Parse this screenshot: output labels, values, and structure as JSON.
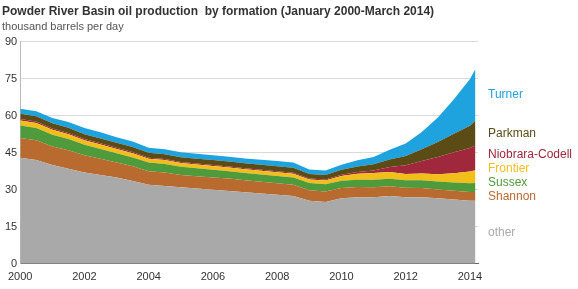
{
  "chart_data": {
    "type": "area",
    "stacked": true,
    "title": "Powder River Basin oil production  by formation (January 2000-March 2014)",
    "subtitle": "thousand barrels per day",
    "x": [
      2000,
      2000.5,
      2001,
      2001.5,
      2002,
      2002.5,
      2003,
      2003.5,
      2004,
      2004.5,
      2005,
      2005.5,
      2006,
      2006.5,
      2007,
      2007.5,
      2008,
      2008.5,
      2009,
      2009.5,
      2010,
      2010.5,
      2011,
      2011.5,
      2012,
      2012.5,
      2013,
      2013.5,
      2014,
      2014.17
    ],
    "xlim": [
      2000,
      2014.25
    ],
    "xticks": [
      2000,
      2002,
      2004,
      2006,
      2008,
      2010,
      2012,
      2014
    ],
    "ylim": [
      0,
      90
    ],
    "yticks": [
      0,
      15,
      30,
      45,
      60,
      75,
      90
    ],
    "grid": true,
    "series": [
      {
        "name": "other",
        "color": "#a9a9a9",
        "values": [
          43,
          42,
          40,
          38.5,
          37,
          36,
          35,
          33.5,
          32,
          31.5,
          31,
          30.5,
          30,
          29.5,
          29,
          28.5,
          28,
          27.5,
          25.5,
          25,
          26.5,
          27,
          27,
          27.5,
          27,
          27,
          26.5,
          26,
          25.5,
          25.5
        ]
      },
      {
        "name": "Shannon",
        "color": "#b96a2e",
        "values": [
          8,
          8,
          7.5,
          7.5,
          7,
          6.5,
          6,
          6,
          5.5,
          5.5,
          5,
          5,
          5,
          5,
          4.8,
          4.7,
          4.6,
          4.5,
          4.3,
          4.3,
          4.2,
          4.1,
          4,
          3.9,
          3.8,
          3.7,
          3.6,
          3.6,
          3.6,
          3.6
        ]
      },
      {
        "name": "Sussex",
        "color": "#4f9a3a",
        "values": [
          5,
          5,
          4.8,
          4.5,
          4.2,
          4,
          3.8,
          3.6,
          3.5,
          3.4,
          3.3,
          3.2,
          3.1,
          3,
          3,
          3,
          3,
          3,
          2.9,
          2.9,
          2.9,
          2.9,
          3,
          3,
          3,
          3.1,
          3.2,
          3.3,
          3.5,
          3.6
        ]
      },
      {
        "name": "Frontier",
        "color": "#f2be1a",
        "values": [
          2,
          2,
          2,
          2,
          1.8,
          1.8,
          1.7,
          1.7,
          1.6,
          1.6,
          1.5,
          1.5,
          1.5,
          1.5,
          1.5,
          1.5,
          1.5,
          1.5,
          1.4,
          1.5,
          2,
          2.5,
          2.8,
          2.8,
          2.6,
          2.8,
          3,
          3.8,
          4.8,
          5.2
        ]
      },
      {
        "name": "Niobrara-Codell",
        "color": "#a0283c",
        "values": [
          0.6,
          0.6,
          0.5,
          0.5,
          0.5,
          0.5,
          0.5,
          0.5,
          0.4,
          0.4,
          0.4,
          0.4,
          0.4,
          0.4,
          0.4,
          0.4,
          0.4,
          0.4,
          0.4,
          0.4,
          0.5,
          0.7,
          1,
          2,
          3.5,
          5,
          7,
          8.5,
          9.5,
          10
        ]
      },
      {
        "name": "Parkman",
        "color": "#5b4b14",
        "values": [
          2.2,
          2.2,
          2.1,
          2.1,
          2,
          2,
          2,
          2,
          2,
          2,
          2,
          2,
          2,
          2,
          2,
          2,
          2,
          2,
          1.9,
          1.9,
          2,
          2.2,
          2.5,
          3,
          3.8,
          4.8,
          6,
          7.5,
          9,
          10
        ]
      },
      {
        "name": "Turner",
        "color": "#1fa3df",
        "values": [
          2,
          2,
          2.2,
          2.3,
          2.5,
          2.5,
          2.3,
          2.2,
          2,
          2,
          2,
          2,
          2,
          2,
          2,
          2,
          2.1,
          2.1,
          1.8,
          1.8,
          2,
          2.5,
          3,
          4,
          5,
          7,
          10,
          14,
          19,
          21
        ]
      }
    ]
  }
}
